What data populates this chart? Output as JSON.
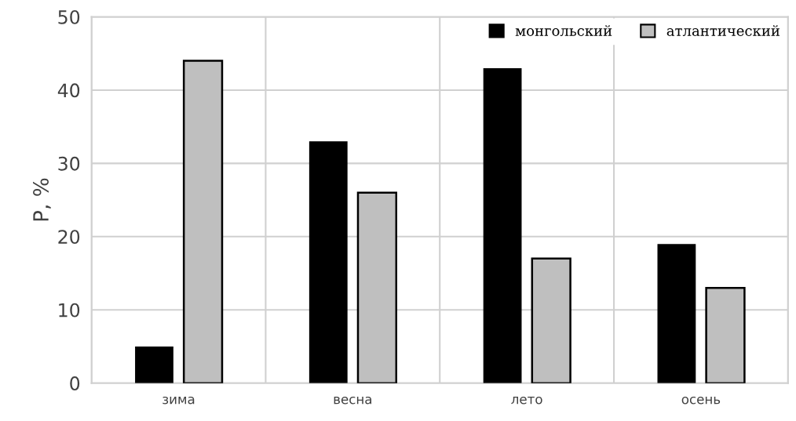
{
  "chart_data": {
    "type": "bar",
    "ylabel": "P, %",
    "categories": [
      "зима",
      "весна",
      "лето",
      "осень"
    ],
    "series": [
      {
        "name": "монгольский",
        "color": "#000000",
        "values": [
          5,
          33,
          43,
          19
        ]
      },
      {
        "name": "атлантический",
        "color": "#bfbfbf",
        "values": [
          44,
          26,
          17,
          13
        ]
      }
    ],
    "ylim": [
      0,
      50
    ],
    "yticks": [
      0,
      10,
      20,
      30,
      40,
      50
    ],
    "grid": true,
    "legend": "top right"
  }
}
